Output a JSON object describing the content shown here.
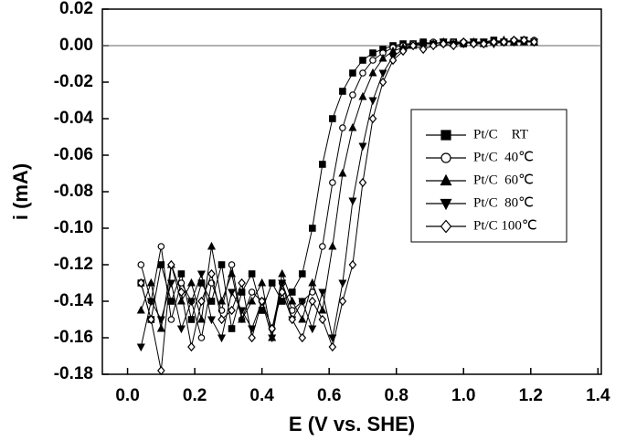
{
  "chart_data": {
    "type": "line",
    "xlabel": "E (V vs. SHE)",
    "ylabel": "i (mA)",
    "xlim": [
      -0.075,
      1.41
    ],
    "ylim": [
      -0.18,
      0.02
    ],
    "xticks": [
      {
        "value": 0,
        "label": "0.0"
      },
      0.2,
      0.4,
      0.6,
      0.8,
      {
        "value": 1,
        "label": "1.0"
      },
      1.2,
      1.4
    ],
    "yticks": [
      0.02,
      {
        "value": 0,
        "label": "0.00"
      },
      -0.02,
      -0.04,
      -0.06,
      -0.08,
      {
        "value": -0.1,
        "label": "-0.10"
      },
      -0.12,
      -0.14,
      -0.16,
      -0.18
    ],
    "reference_line": 0,
    "x": [
      0.04,
      0.07,
      0.1,
      0.13,
      0.16,
      0.19,
      0.22,
      0.25,
      0.28,
      0.31,
      0.34,
      0.37,
      0.4,
      0.43,
      0.46,
      0.49,
      0.52,
      0.55,
      0.58,
      0.61,
      0.64,
      0.67,
      0.7,
      0.73,
      0.76,
      0.79,
      0.82,
      0.85,
      0.88,
      0.91,
      0.94,
      0.97,
      1.0,
      1.03,
      1.06,
      1.09,
      1.12,
      1.15,
      1.18,
      1.21
    ],
    "series": [
      {
        "name": "Pt/C    RT",
        "color": "#000000",
        "marker": "square",
        "values": [
          -0.13,
          -0.15,
          -0.12,
          -0.14,
          -0.125,
          -0.15,
          -0.13,
          -0.14,
          -0.12,
          -0.155,
          -0.135,
          -0.125,
          -0.145,
          -0.13,
          -0.14,
          -0.135,
          -0.125,
          -0.1,
          -0.065,
          -0.04,
          -0.025,
          -0.015,
          -0.008,
          -0.004,
          -0.002,
          0,
          0.001,
          0.001,
          0.002,
          0.001,
          0.002,
          0.002,
          0.001,
          0.002,
          0.002,
          0.003,
          0.002,
          0.002,
          0.003,
          0.002
        ]
      },
      {
        "name": "Pt/C  40℃",
        "color": "#000000",
        "marker": "circle",
        "values": [
          -0.12,
          -0.14,
          -0.11,
          -0.15,
          -0.13,
          -0.14,
          -0.16,
          -0.13,
          -0.145,
          -0.12,
          -0.15,
          -0.135,
          -0.14,
          -0.155,
          -0.13,
          -0.145,
          -0.14,
          -0.135,
          -0.11,
          -0.075,
          -0.045,
          -0.027,
          -0.015,
          -0.008,
          -0.004,
          -0.001,
          0,
          0.001,
          0.001,
          0.002,
          0.001,
          0.002,
          0.002,
          0.001,
          0.002,
          0.002,
          0.002,
          0.003,
          0.002,
          0.003
        ]
      },
      {
        "name": "Pt/C  60℃",
        "color": "#000000",
        "marker": "triangle-up",
        "values": [
          -0.145,
          -0.13,
          -0.155,
          -0.12,
          -0.14,
          -0.13,
          -0.15,
          -0.11,
          -0.14,
          -0.125,
          -0.15,
          -0.14,
          -0.13,
          -0.16,
          -0.125,
          -0.14,
          -0.15,
          -0.13,
          -0.145,
          -0.11,
          -0.07,
          -0.045,
          -0.028,
          -0.015,
          -0.007,
          -0.003,
          -0.001,
          0,
          0.001,
          0.001,
          0.002,
          0.001,
          0.002,
          0.002,
          0.001,
          0.002,
          0.003,
          0.002,
          0.002,
          0.002
        ]
      },
      {
        "name": "Pt/C  80℃",
        "color": "#000000",
        "marker": "triangle-down",
        "values": [
          -0.165,
          -0.14,
          -0.15,
          -0.13,
          -0.155,
          -0.14,
          -0.125,
          -0.15,
          -0.16,
          -0.135,
          -0.145,
          -0.155,
          -0.14,
          -0.16,
          -0.13,
          -0.15,
          -0.14,
          -0.155,
          -0.135,
          -0.16,
          -0.13,
          -0.085,
          -0.055,
          -0.03,
          -0.015,
          -0.006,
          -0.002,
          0,
          0.001,
          0.001,
          0.002,
          0.001,
          0.001,
          0.002,
          0.002,
          0.001,
          0.002,
          0.002,
          0.003,
          0.002
        ]
      },
      {
        "name": "Pt/C 100℃",
        "color": "#000000",
        "marker": "diamond",
        "values": [
          -0.13,
          -0.15,
          -0.178,
          -0.12,
          -0.135,
          -0.165,
          -0.14,
          -0.125,
          -0.15,
          -0.145,
          -0.13,
          -0.16,
          -0.14,
          -0.155,
          -0.135,
          -0.15,
          -0.16,
          -0.14,
          -0.15,
          -0.165,
          -0.14,
          -0.12,
          -0.075,
          -0.04,
          -0.02,
          -0.008,
          -0.003,
          0,
          -0.002,
          0,
          0.001,
          0,
          0.002,
          0.001,
          0.001,
          0.002,
          0.002,
          0.003,
          0.003,
          0.002
        ]
      }
    ]
  }
}
